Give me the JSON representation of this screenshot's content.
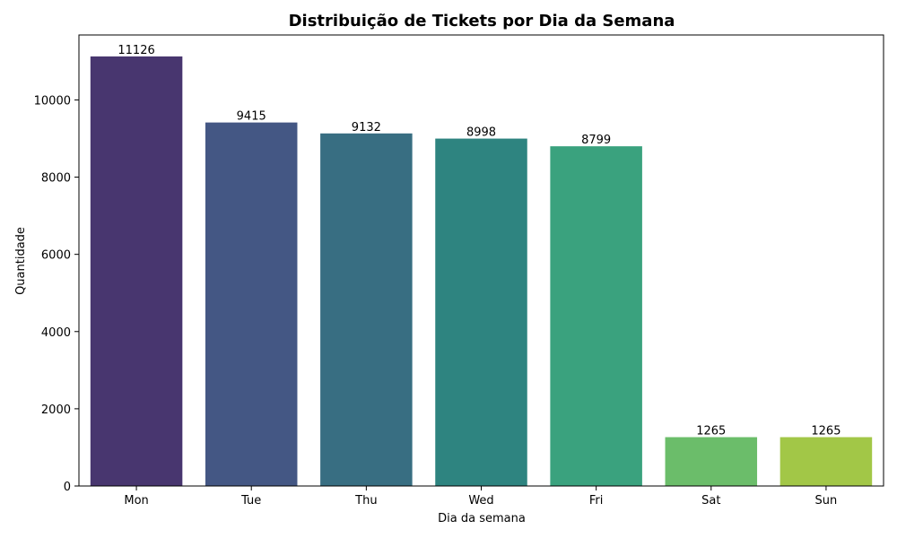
{
  "chart_data": {
    "type": "bar",
    "title": "Distribuição de Tickets por Dia da Semana",
    "xlabel": "Dia da semana",
    "ylabel": "Quantidade",
    "categories": [
      "Mon",
      "Tue",
      "Thu",
      "Wed",
      "Fri",
      "Sat",
      "Sun"
    ],
    "values": [
      11126,
      9415,
      9132,
      8998,
      8799,
      1265,
      1265
    ],
    "value_labels": [
      "11126",
      "9415",
      "9132",
      "8998",
      "8799",
      "1265",
      "1265"
    ],
    "colors": [
      "#48366f",
      "#445784",
      "#386e82",
      "#2e8480",
      "#3aa27e",
      "#6bbd6a",
      "#a2c747"
    ],
    "ylim": [
      0,
      11682
    ],
    "yticks": [
      0,
      2000,
      4000,
      6000,
      8000,
      10000
    ],
    "ytick_labels": [
      "0",
      "2000",
      "4000",
      "6000",
      "8000",
      "10000"
    ],
    "grid": false,
    "legend": "none"
  }
}
